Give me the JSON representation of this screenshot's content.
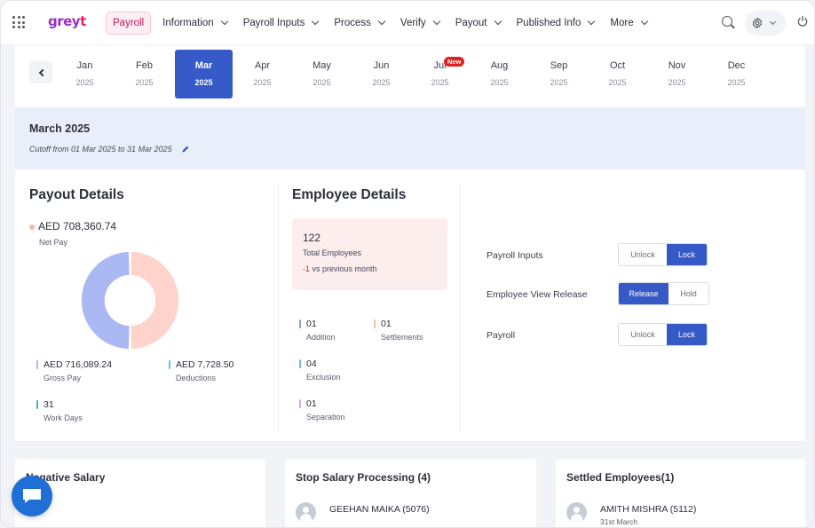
{
  "nav": {
    "logo_main": "grey",
    "logo_accent": "t",
    "items": [
      {
        "label": "Payroll",
        "active": true,
        "dropdown": false
      },
      {
        "label": "Information",
        "dropdown": true
      },
      {
        "label": "Payroll Inputs",
        "dropdown": true
      },
      {
        "label": "Process",
        "dropdown": true
      },
      {
        "label": "Verify",
        "dropdown": true
      },
      {
        "label": "Payout",
        "dropdown": true
      },
      {
        "label": "Published Info",
        "dropdown": true
      },
      {
        "label": "More",
        "dropdown": true
      }
    ],
    "icons": [
      "apps-grid-icon",
      "search-icon",
      "gear-icon",
      "power-icon"
    ]
  },
  "months": {
    "items": [
      {
        "month": "Jan",
        "year": "2025"
      },
      {
        "month": "Feb",
        "year": "2025"
      },
      {
        "month": "Mar",
        "year": "2025",
        "active": true
      },
      {
        "month": "Apr",
        "year": "2025"
      },
      {
        "month": "May",
        "year": "2025"
      },
      {
        "month": "Jun",
        "year": "2025"
      },
      {
        "month": "Jul",
        "year": "2025",
        "badge": "New"
      },
      {
        "month": "Aug",
        "year": "2025"
      },
      {
        "month": "Sep",
        "year": "2025"
      },
      {
        "month": "Oct",
        "year": "2025"
      },
      {
        "month": "Nov",
        "year": "2025"
      },
      {
        "month": "Dec",
        "year": "2025"
      }
    ]
  },
  "period": {
    "title": "March 2025",
    "cutoff": "Cutoff from 01 Mar 2025 to 31 Mar 2025"
  },
  "payout": {
    "title": "Payout Details",
    "net_pay_value": "AED 708,360.74",
    "net_pay_label": "Net Pay",
    "gross_value": "AED 716,089.24",
    "gross_label": "Gross Pay",
    "deductions_value": "AED 7,728.50",
    "deductions_label": "Deductions",
    "workdays_value": "31",
    "workdays_label": "Work Days",
    "donut": {
      "net_share": 0.5,
      "gross_share": 0.5,
      "net_color": "#fdd3cc",
      "gross_color": "#aab8f3"
    }
  },
  "employee": {
    "title": "Employee Details",
    "total": "122",
    "total_label": "Total Employees",
    "delta": "-1",
    "delta_text": "vs previous month",
    "stats": [
      {
        "value": "01",
        "label": "Addition",
        "color": "#8c9ef0"
      },
      {
        "value": "01",
        "label": "Settlements",
        "color": "#f7b8b2"
      },
      {
        "value": "04",
        "label": "Exclusion",
        "color": "#6cc7b8"
      },
      {
        "value": "01",
        "label": "Separation",
        "color": "#d8a6e6"
      }
    ]
  },
  "controls": [
    {
      "label": "Payroll Inputs",
      "options": [
        "Unlock",
        "Lock"
      ],
      "selected": "Lock"
    },
    {
      "label": "Employee View Release",
      "options": [
        "Release",
        "Hold"
      ],
      "selected": "Release"
    },
    {
      "label": "Payroll",
      "options": [
        "Unlock",
        "Lock"
      ],
      "selected": "Lock"
    }
  ],
  "cards": {
    "negative": {
      "title": "Negative Salary"
    },
    "stop": {
      "title": "Stop Salary Processing (4)",
      "first_name": "GEEHAN MAIKA (5076)"
    },
    "settled": {
      "title": "Settled Employees(1)",
      "first_name": "AMITH MISHRA (5112)",
      "first_sub": "31st March"
    }
  },
  "colors": {
    "accent": "#3559c7",
    "brand": "#9b2dc4",
    "active_nav_bg": "#fdeef3",
    "banner_bg": "#e8effb",
    "chat": "#1f6fd6"
  }
}
